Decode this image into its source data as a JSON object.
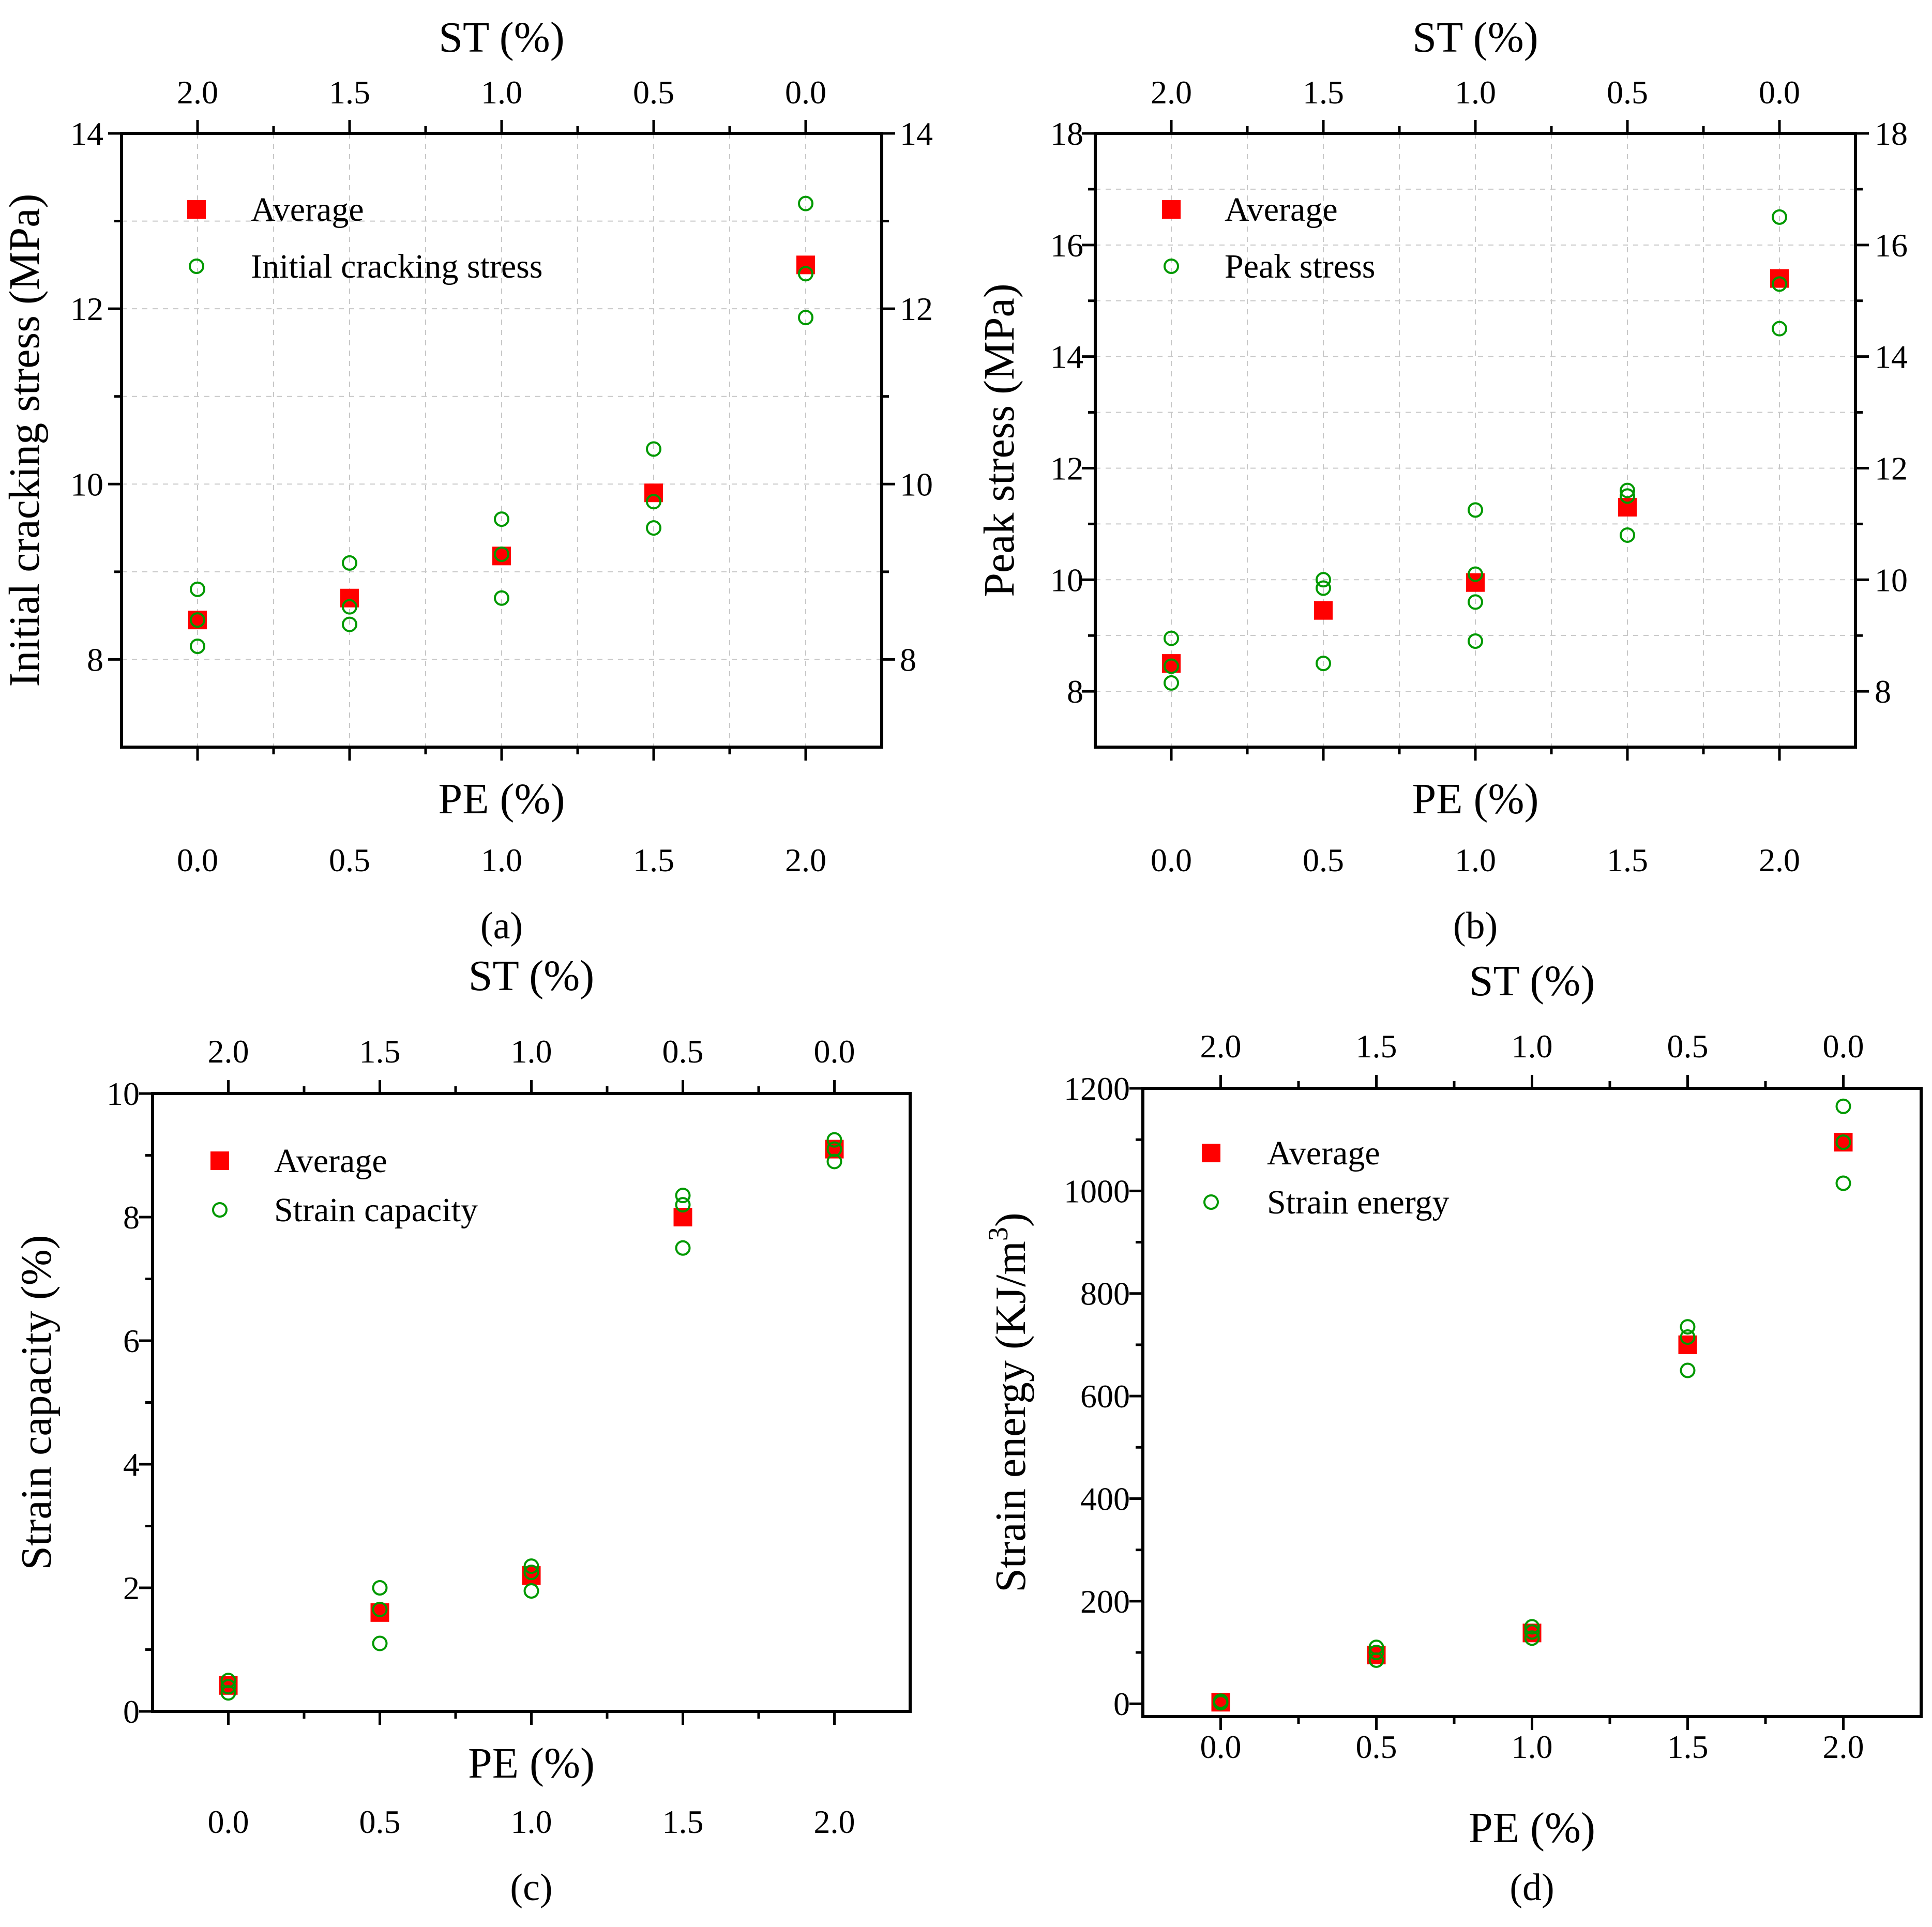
{
  "chart_data": [
    {
      "type": "scatter",
      "caption": "(a)",
      "xlabel": "PE (%)",
      "x2label": "ST (%)",
      "ylabel": "Initial cracking stress (MPa)",
      "xlim": [
        -0.25,
        2.25
      ],
      "ylim": [
        7,
        14
      ],
      "xticks": [
        0,
        0.5,
        1,
        1.5,
        2
      ],
      "xtick_labels": [
        "0.0",
        "0.5",
        "1.0",
        "1.5",
        "2.0"
      ],
      "x2tick_labels": [
        "2.0",
        "1.5",
        "1.0",
        "0.5",
        "0.0"
      ],
      "yticks": [
        8,
        10,
        12,
        14
      ],
      "ytick_labels": [
        "8",
        "10",
        "12",
        "14"
      ],
      "grid": true,
      "legend_position": "top-left",
      "series": [
        {
          "name": "Average",
          "marker": "square",
          "color": "#ff0000",
          "x": [
            0,
            0.5,
            1,
            1.5,
            2
          ],
          "y": [
            8.45,
            8.7,
            9.18,
            9.9,
            12.5
          ]
        },
        {
          "name": "Initial cracking stress",
          "marker": "circle",
          "color": "#009900",
          "x": [
            0,
            0,
            0,
            0.5,
            0.5,
            0.5,
            1,
            1,
            1,
            1.5,
            1.5,
            1.5,
            2,
            2,
            2
          ],
          "y": [
            8.8,
            8.45,
            8.15,
            9.1,
            8.6,
            8.4,
            9.6,
            9.2,
            8.7,
            10.4,
            9.8,
            9.5,
            13.2,
            12.4,
            11.9
          ]
        }
      ]
    },
    {
      "type": "scatter",
      "caption": "(b)",
      "xlabel": "PE (%)",
      "x2label": "ST (%)",
      "ylabel": "Peak stress (MPa)",
      "xlim": [
        -0.25,
        2.25
      ],
      "ylim": [
        7,
        18
      ],
      "xticks": [
        0,
        0.5,
        1,
        1.5,
        2
      ],
      "xtick_labels": [
        "0.0",
        "0.5",
        "1.0",
        "1.5",
        "2.0"
      ],
      "x2tick_labels": [
        "2.0",
        "1.5",
        "1.0",
        "0.5",
        "0.0"
      ],
      "yticks": [
        8,
        10,
        12,
        14,
        16,
        18
      ],
      "ytick_labels": [
        "8",
        "10",
        "12",
        "14",
        "16",
        "18"
      ],
      "grid": true,
      "legend_position": "top-left",
      "series": [
        {
          "name": "Average",
          "marker": "square",
          "color": "#ff0000",
          "x": [
            0,
            0.5,
            1,
            1.5,
            2
          ],
          "y": [
            8.5,
            9.45,
            9.95,
            11.3,
            15.4
          ]
        },
        {
          "name": "Peak stress",
          "marker": "circle",
          "color": "#009900",
          "x": [
            0,
            0,
            0,
            0.5,
            0.5,
            0.5,
            1,
            1,
            1,
            1,
            1.5,
            1.5,
            1.5,
            2,
            2,
            2
          ],
          "y": [
            8.95,
            8.45,
            8.15,
            10.0,
            9.85,
            8.5,
            11.25,
            10.1,
            9.6,
            8.9,
            11.6,
            11.5,
            10.8,
            16.5,
            15.3,
            14.5
          ]
        }
      ]
    },
    {
      "type": "scatter",
      "caption": "(c)",
      "xlabel": "PE (%)",
      "x2label": "ST (%)",
      "ylabel": "Strain capacity (%)",
      "xlim": [
        -0.25,
        2.25
      ],
      "ylim": [
        0,
        10
      ],
      "xticks": [
        0,
        0.5,
        1,
        1.5,
        2
      ],
      "xtick_labels": [
        "0.0",
        "0.5",
        "1.0",
        "1.5",
        "2.0"
      ],
      "x2tick_labels": [
        "2.0",
        "1.5",
        "1.0",
        "0.5",
        "0.0"
      ],
      "yticks": [
        0,
        2,
        4,
        6,
        8,
        10
      ],
      "ytick_labels": [
        "0",
        "2",
        "4",
        "6",
        "8",
        "10"
      ],
      "grid": false,
      "legend_position": "top-left",
      "series": [
        {
          "name": "Average",
          "marker": "square",
          "color": "#ff0000",
          "x": [
            0,
            0.5,
            1,
            1.5,
            2
          ],
          "y": [
            0.42,
            1.6,
            2.2,
            8.0,
            9.1
          ]
        },
        {
          "name": "Strain capacity",
          "marker": "circle",
          "color": "#009900",
          "x": [
            0,
            0,
            0,
            0.5,
            0.5,
            0.5,
            1,
            1,
            1,
            1.5,
            1.5,
            1.5,
            2,
            2,
            2
          ],
          "y": [
            0.5,
            0.4,
            0.3,
            2.0,
            1.65,
            1.1,
            2.35,
            2.25,
            1.95,
            8.35,
            8.2,
            7.5,
            9.25,
            9.1,
            8.9
          ]
        }
      ]
    },
    {
      "type": "scatter",
      "caption": "(d)",
      "xlabel": "PE (%)",
      "x2label": "ST (%)",
      "ylabel": "Strain energy (KJ/m",
      "ylabel_sup": "3",
      "ylabel_end": ")",
      "xlim": [
        -0.25,
        2.25
      ],
      "ylim": [
        -25,
        1200
      ],
      "xticks": [
        0,
        0.5,
        1,
        1.5,
        2
      ],
      "xtick_labels": [
        "0.0",
        "0.5",
        "1.0",
        "1.5",
        "2.0"
      ],
      "x2tick_labels": [
        "2.0",
        "1.5",
        "1.0",
        "0.5",
        "0.0"
      ],
      "yticks": [
        0,
        200,
        400,
        600,
        800,
        1000,
        1200
      ],
      "ytick_labels": [
        "0",
        "200",
        "400",
        "600",
        "800",
        "1000",
        "1200"
      ],
      "grid": false,
      "legend_position": "top-left",
      "series": [
        {
          "name": "Average",
          "marker": "square",
          "color": "#ff0000",
          "x": [
            0,
            0.5,
            1,
            1.5,
            2
          ],
          "y": [
            3,
            95,
            138,
            700,
            1095
          ]
        },
        {
          "name": "Strain energy",
          "marker": "circle",
          "color": "#009900",
          "x": [
            0,
            0,
            0.5,
            0.5,
            0.5,
            1,
            1,
            1,
            1.5,
            1.5,
            1.5,
            2,
            2,
            2
          ],
          "y": [
            5,
            2,
            110,
            100,
            85,
            150,
            140,
            128,
            735,
            715,
            650,
            1165,
            1095,
            1015
          ]
        }
      ]
    }
  ]
}
